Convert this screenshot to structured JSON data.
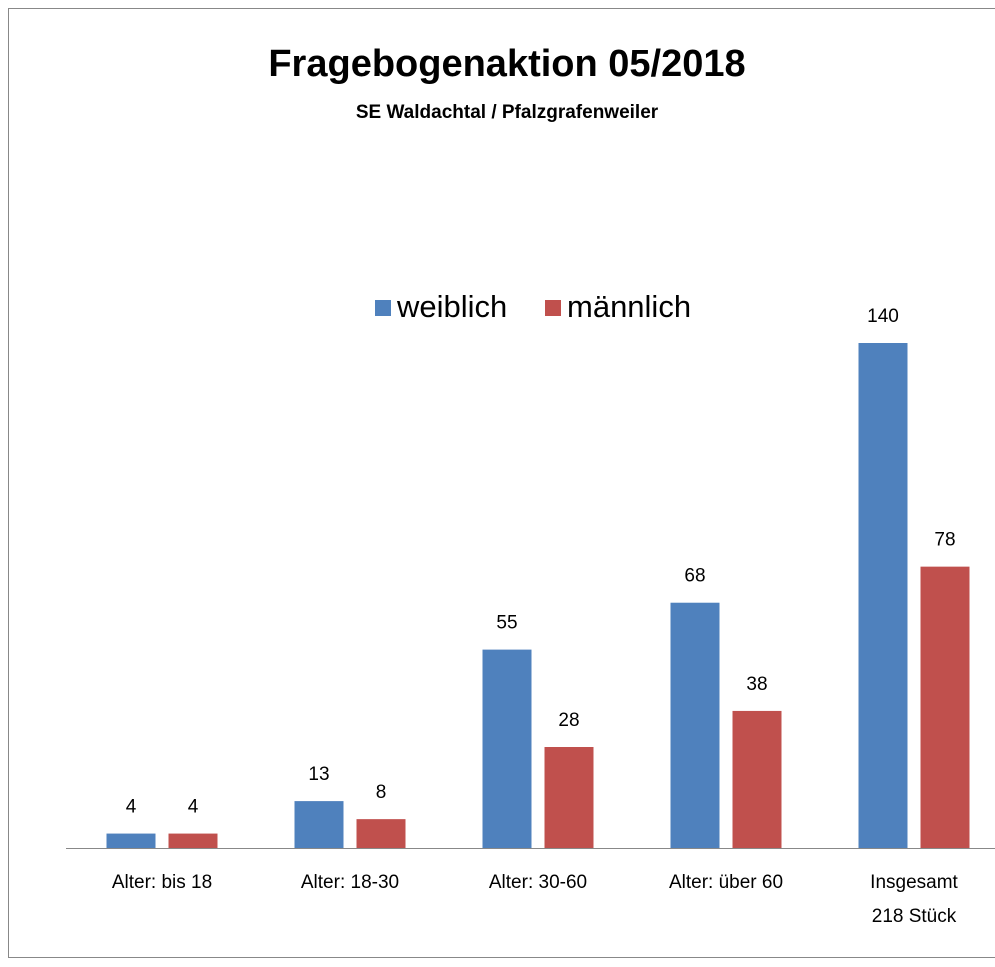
{
  "chart_data": {
    "type": "bar",
    "title": "Fragebogenaktion 05/2018",
    "subtitle": "SE Waldachtal / Pfalzgrafenweiler",
    "categories": [
      "Alter: bis 18",
      "Alter: 18-30",
      "Alter: 30-60",
      "Alter: über 60",
      "Insgesamt\n218 Stück"
    ],
    "series": [
      {
        "name": "weiblich",
        "color": "#4f81bd",
        "values": [
          4,
          13,
          55,
          68,
          140
        ]
      },
      {
        "name": "männlich",
        "color": "#c0504d",
        "values": [
          4,
          8,
          28,
          38,
          78
        ]
      }
    ],
    "legend": "top"
  }
}
